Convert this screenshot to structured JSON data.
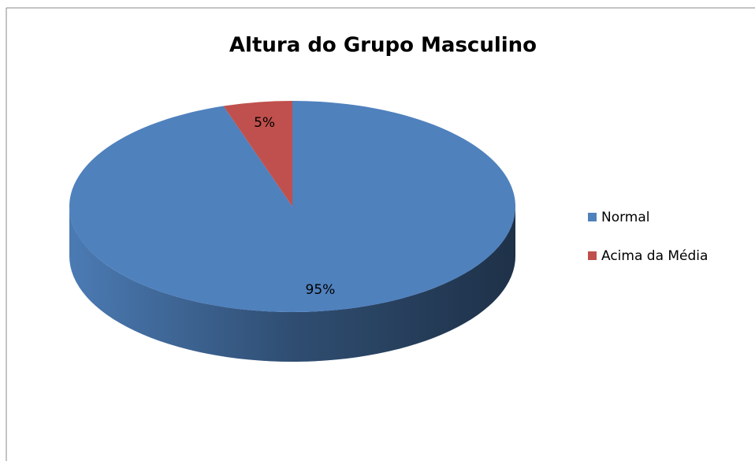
{
  "chart_data": {
    "type": "pie",
    "title": "Altura do Grupo Masculino",
    "categories": [
      "Normal",
      "Acima da Média"
    ],
    "values": [
      95,
      5
    ],
    "value_labels": [
      "95%",
      "5%"
    ],
    "colors": [
      "#4f81bd",
      "#c0504d"
    ],
    "legend": "right",
    "three_d": true
  }
}
